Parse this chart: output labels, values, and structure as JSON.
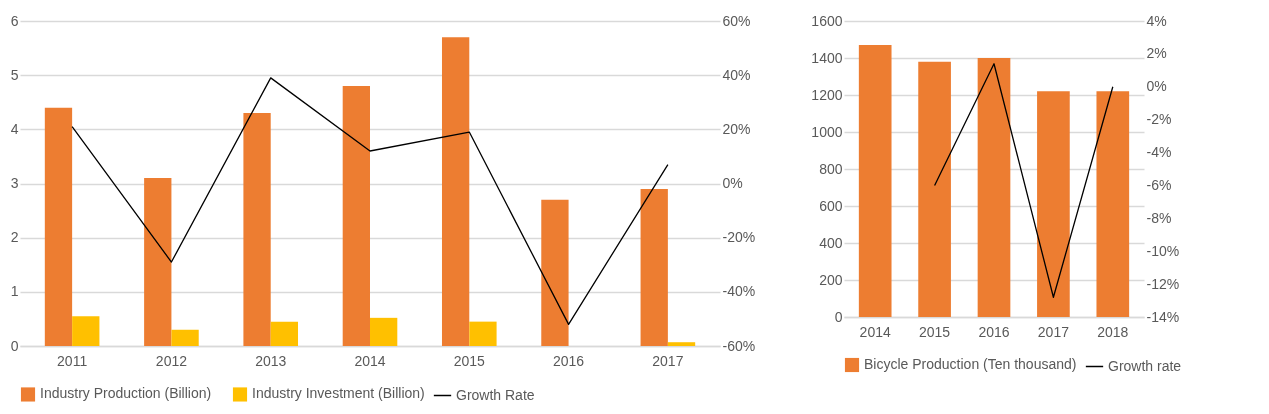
{
  "chart_data": [
    {
      "type": "bar",
      "categories": [
        "2011",
        "2012",
        "2013",
        "2014",
        "2015",
        "2016",
        "2017"
      ],
      "series": [
        {
          "name": "Industry Production (Billion)",
          "color": "#ed7d31",
          "values": [
            4.4,
            3.1,
            4.3,
            4.8,
            5.7,
            2.7,
            2.9
          ]
        },
        {
          "name": "Industry Investment (Billion)",
          "color": "#ffc000",
          "values": [
            0.55,
            0.3,
            0.45,
            0.52,
            0.45,
            null,
            0.07
          ]
        },
        {
          "name": "Growth Rate",
          "type": "line",
          "axis": "y2",
          "color": "#000000",
          "values": [
            21,
            -29,
            39,
            12,
            19,
            -52,
            7
          ]
        }
      ],
      "ylim": [
        0,
        6
      ],
      "yticks": [
        0,
        1,
        2,
        3,
        4,
        5,
        6
      ],
      "y2lim": [
        -60,
        60
      ],
      "y2ticks": [
        {
          "value": -60,
          "label": "-60%"
        },
        {
          "value": -40,
          "label": "-40%"
        },
        {
          "value": -20,
          "label": "-20%"
        },
        {
          "value": 0,
          "label": "0%"
        },
        {
          "value": 20,
          "label": "20%"
        },
        {
          "value": 40,
          "label": "40%"
        },
        {
          "value": 60,
          "label": "60%"
        }
      ],
      "grid": "y",
      "legend": "bottom"
    },
    {
      "type": "bar",
      "categories": [
        "2014",
        "2015",
        "2016",
        "2017",
        "2018"
      ],
      "series": [
        {
          "name": "Bicycle Production (Ten thousand)",
          "color": "#ed7d31",
          "values": [
            1470,
            1380,
            1400,
            1220,
            1220
          ]
        },
        {
          "name": "Growth rate",
          "type": "line",
          "axis": "y2",
          "color": "#000000",
          "values": [
            null,
            -6,
            1.4,
            -12.8,
            0
          ]
        }
      ],
      "ylim": [
        0,
        1600
      ],
      "yticks": [
        0,
        200,
        400,
        600,
        800,
        1000,
        1200,
        1400,
        1600
      ],
      "y2lim": [
        -14,
        4
      ],
      "y2ticks": [
        {
          "value": -14,
          "label": "-14%"
        },
        {
          "value": -12,
          "label": "-12%"
        },
        {
          "value": -10,
          "label": "-10%"
        },
        {
          "value": -8,
          "label": "-8%"
        },
        {
          "value": -6,
          "label": "-6%"
        },
        {
          "value": -4,
          "label": "-4%"
        },
        {
          "value": -2,
          "label": "-2%"
        },
        {
          "value": 0,
          "label": "0%"
        },
        {
          "value": 2,
          "label": "2%"
        },
        {
          "value": 4,
          "label": "4%"
        }
      ],
      "grid": "y",
      "legend": "bottom"
    }
  ]
}
